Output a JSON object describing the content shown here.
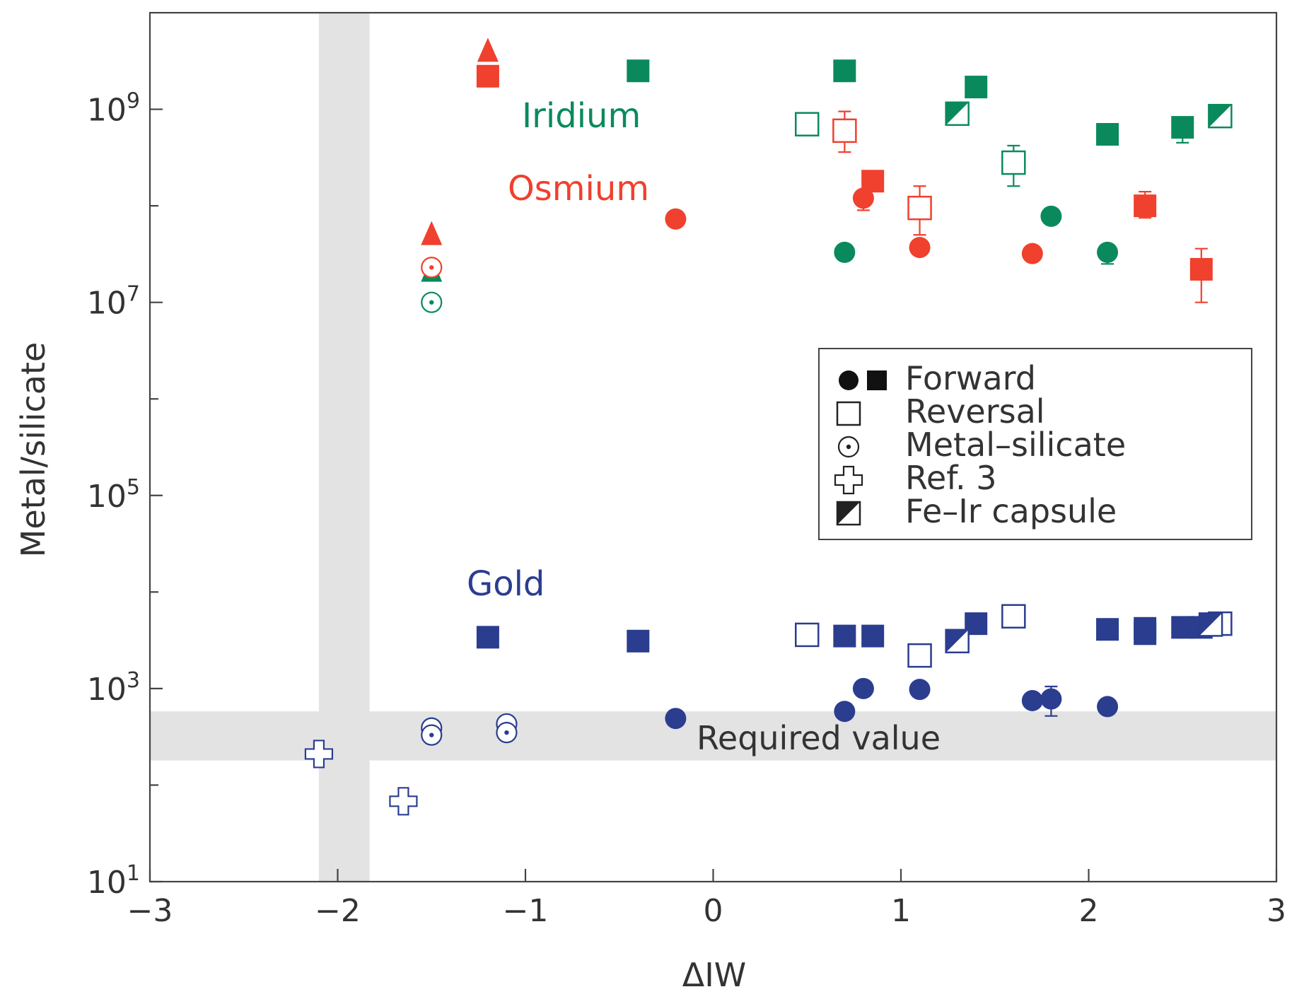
{
  "chart_data": {
    "type": "scatter",
    "xlabel": "ΔIW",
    "ylabel": "Metal/silicate",
    "xlim": [
      -3,
      3
    ],
    "ylim": [
      10,
      10000000000.0
    ],
    "yscale": "log",
    "x_ticks": [
      -3,
      -2,
      -1,
      0,
      1,
      2,
      3
    ],
    "x_tick_labels": [
      "−3",
      "−2",
      "−1",
      "0",
      "1",
      "2",
      "3"
    ],
    "y_major_ticks": [
      {
        "value": 10,
        "base": "10",
        "exp": "1"
      },
      {
        "value": 1000,
        "base": "10",
        "exp": "3"
      },
      {
        "value": 100000,
        "base": "10",
        "exp": "5"
      },
      {
        "value": 10000000,
        "base": "10",
        "exp": "7"
      },
      {
        "value": 1000000000,
        "base": "10",
        "exp": "9"
      }
    ],
    "y_minor_ticks": [
      100,
      10000,
      1000000,
      100000000
    ],
    "shaded_regions": {
      "required_value": {
        "ymin": 180,
        "ymax": 580,
        "label": "Required value"
      },
      "vertical_band": {
        "xmin": -2.1,
        "xmax": -1.83
      }
    },
    "annotations": [
      {
        "text": "Iridium",
        "series": "Iridium"
      },
      {
        "text": "Osmium",
        "series": "Osmium"
      },
      {
        "text": "Gold",
        "series": "Gold"
      }
    ],
    "legend": {
      "position": "center-right",
      "entries": [
        {
          "label": "Forward",
          "marker": "filled"
        },
        {
          "label": "Reversal",
          "marker": "open-square"
        },
        {
          "label": "Metal–silicate",
          "marker": "dotted-circle"
        },
        {
          "label": "Ref. 3",
          "marker": "cross"
        },
        {
          "label": "Fe–Ir capsule",
          "marker": "half-square"
        }
      ]
    },
    "series": [
      {
        "name": "Iridium",
        "color": "#0a8a5c",
        "points": [
          {
            "x": -0.4,
            "y": 2500000000.0,
            "marker": "square-filled"
          },
          {
            "x": 0.7,
            "y": 2500000000.0,
            "marker": "square-filled"
          },
          {
            "x": 1.4,
            "y": 1700000000.0,
            "marker": "square-filled"
          },
          {
            "x": 2.1,
            "y": 550000000.0,
            "marker": "square-filled"
          },
          {
            "x": 2.5,
            "y": 650000000.0,
            "marker": "square-filled",
            "err_low": 450000000.0
          },
          {
            "x": 0.5,
            "y": 700000000.0,
            "marker": "square-open"
          },
          {
            "x": 1.6,
            "y": 280000000.0,
            "marker": "square-open",
            "err_low": 160000000.0,
            "err_high": 420000000.0
          },
          {
            "x": 1.3,
            "y": 900000000.0,
            "marker": "square-half"
          },
          {
            "x": 2.7,
            "y": 850000000.0,
            "marker": "square-half"
          },
          {
            "x": 0.7,
            "y": 33000000.0,
            "marker": "circle-filled"
          },
          {
            "x": 1.8,
            "y": 78000000.0,
            "marker": "circle-filled"
          },
          {
            "x": 2.1,
            "y": 33000000.0,
            "marker": "circle-filled",
            "err_low": 25000000.0
          },
          {
            "x": -1.5,
            "y": 20000000.0,
            "marker": "triangle-filled"
          },
          {
            "x": -1.5,
            "y": 10000000.0,
            "marker": "circle-dot"
          }
        ]
      },
      {
        "name": "Osmium",
        "color": "#f0402e",
        "points": [
          {
            "x": -1.2,
            "y": 2200000000.0,
            "marker": "square-filled"
          },
          {
            "x": 0.85,
            "y": 180000000.0,
            "marker": "square-filled"
          },
          {
            "x": 2.3,
            "y": 100000000.0,
            "marker": "square-filled",
            "err_low": 75000000.0,
            "err_high": 140000000.0
          },
          {
            "x": 2.6,
            "y": 22000000.0,
            "marker": "square-filled",
            "err_low": 10000000.0,
            "err_high": 36000000.0
          },
          {
            "x": 0.7,
            "y": 600000000.0,
            "marker": "square-open",
            "err_low": 360000000.0,
            "err_high": 950000000.0
          },
          {
            "x": 1.1,
            "y": 95000000.0,
            "marker": "square-open",
            "err_low": 50000000.0,
            "err_high": 160000000.0
          },
          {
            "x": -0.2,
            "y": 73000000.0,
            "marker": "circle-filled"
          },
          {
            "x": 0.8,
            "y": 120000000.0,
            "marker": "circle-filled",
            "err_low": 90000000.0
          },
          {
            "x": 1.1,
            "y": 37000000.0,
            "marker": "circle-filled"
          },
          {
            "x": 1.7,
            "y": 32000000.0,
            "marker": "circle-filled"
          },
          {
            "x": -1.2,
            "y": 3800000000.0,
            "marker": "triangle-filled"
          },
          {
            "x": -1.5,
            "y": 48000000.0,
            "marker": "triangle-filled"
          },
          {
            "x": -1.5,
            "y": 23000000.0,
            "marker": "circle-dot"
          }
        ]
      },
      {
        "name": "Gold",
        "color": "#2b3d8f",
        "points": [
          {
            "x": -1.2,
            "y": 3400.0,
            "marker": "square-filled"
          },
          {
            "x": -0.4,
            "y": 3100.0,
            "marker": "square-filled"
          },
          {
            "x": 0.7,
            "y": 3500.0,
            "marker": "square-filled"
          },
          {
            "x": 0.85,
            "y": 3500.0,
            "marker": "square-filled"
          },
          {
            "x": 1.4,
            "y": 4700.0,
            "marker": "square-filled"
          },
          {
            "x": 2.1,
            "y": 4100.0,
            "marker": "square-filled"
          },
          {
            "x": 2.3,
            "y": 4200.0,
            "marker": "square-filled"
          },
          {
            "x": 2.3,
            "y": 3700.0,
            "marker": "square-filled"
          },
          {
            "x": 2.5,
            "y": 4300.0,
            "marker": "square-filled"
          },
          {
            "x": 2.6,
            "y": 4300.0,
            "marker": "square-filled"
          },
          {
            "x": 0.5,
            "y": 3600.0,
            "marker": "square-open"
          },
          {
            "x": 1.1,
            "y": 2200.0,
            "marker": "square-open"
          },
          {
            "x": 1.6,
            "y": 5600.0,
            "marker": "square-open"
          },
          {
            "x": 2.7,
            "y": 4700.0,
            "marker": "square-open"
          },
          {
            "x": 1.3,
            "y": 3100.0,
            "marker": "square-half"
          },
          {
            "x": 2.65,
            "y": 4600.0,
            "marker": "square-half"
          },
          {
            "x": -0.2,
            "y": 490,
            "marker": "circle-filled"
          },
          {
            "x": 0.7,
            "y": 580,
            "marker": "circle-filled"
          },
          {
            "x": 0.8,
            "y": 1000,
            "marker": "circle-filled"
          },
          {
            "x": 1.1,
            "y": 980,
            "marker": "circle-filled"
          },
          {
            "x": 1.7,
            "y": 750,
            "marker": "circle-filled"
          },
          {
            "x": 1.8,
            "y": 780,
            "marker": "circle-filled",
            "err_low": 520,
            "err_high": 1050
          },
          {
            "x": 2.1,
            "y": 650,
            "marker": "circle-filled"
          },
          {
            "x": -1.5,
            "y": 390,
            "marker": "circle-dot"
          },
          {
            "x": -1.5,
            "y": 330,
            "marker": "circle-dot"
          },
          {
            "x": -1.1,
            "y": 430,
            "marker": "circle-dot"
          },
          {
            "x": -1.1,
            "y": 350,
            "marker": "circle-dot"
          },
          {
            "x": -2.1,
            "y": 210,
            "marker": "cross-open"
          },
          {
            "x": -1.65,
            "y": 68,
            "marker": "cross-open"
          }
        ]
      }
    ]
  }
}
